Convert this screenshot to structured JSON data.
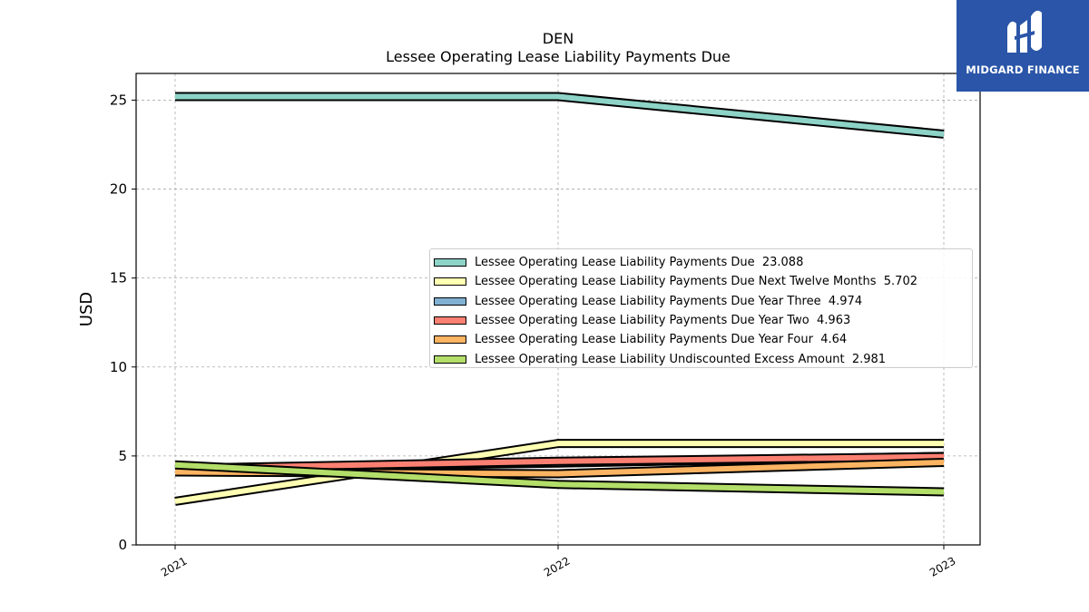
{
  "chart_data": {
    "type": "line",
    "title": "DEN",
    "subtitle": "Lessee Operating Lease Liability Payments Due",
    "xlabel": "",
    "ylabel": "USD",
    "x": [
      "2021",
      "2022",
      "2023"
    ],
    "ylim": [
      0,
      26.5
    ],
    "yticks": [
      0,
      5,
      10,
      15,
      20,
      25
    ],
    "grid": true,
    "legend_position": "center-right",
    "series": [
      {
        "name": "Lessee Operating Lease Liability Payments Due  23.088",
        "color": "#8dd3c7",
        "values": [
          25.2,
          25.2,
          23.088
        ]
      },
      {
        "name": "Lessee Operating Lease Liability Payments Due Next Twelve Months  5.702",
        "color": "#ffffb3",
        "values": [
          2.45,
          5.702,
          5.702
        ]
      },
      {
        "name": "Lessee Operating Lease Liability Payments Due Year Three  4.974",
        "color": "#80b1d3",
        "values": [
          4.3,
          4.6,
          4.974
        ]
      },
      {
        "name": "Lessee Operating Lease Liability Payments Due Year Two  4.963",
        "color": "#fb8072",
        "values": [
          4.3,
          4.7,
          4.963
        ]
      },
      {
        "name": "Lessee Operating Lease Liability Payments Due Year Four  4.64",
        "color": "#fdb462",
        "values": [
          4.1,
          4.0,
          4.64
        ]
      },
      {
        "name": "Lessee Operating Lease Liability Undiscounted Excess Amount  2.981",
        "color": "#b3de69",
        "values": [
          4.5,
          3.4,
          2.981
        ]
      }
    ]
  },
  "logo": {
    "text": "MIDGARD FINANCE"
  }
}
